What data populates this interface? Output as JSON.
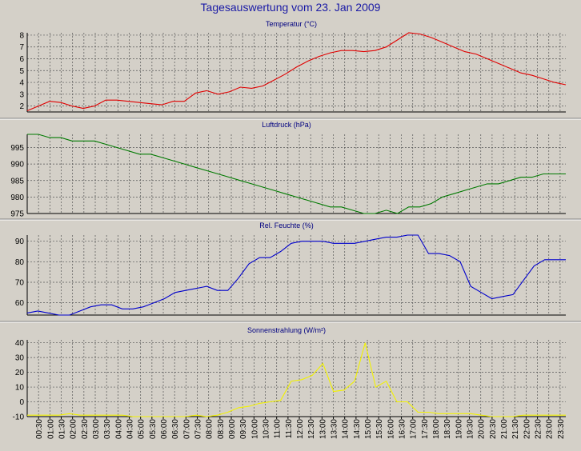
{
  "page": {
    "title": "Tagesauswertung vom 23. Jan 2009"
  },
  "chart_data": [
    {
      "type": "line",
      "title": "Temperatur (°C)",
      "color": "#e00000",
      "ylim": [
        1.5,
        8.2
      ],
      "yticks": [
        2,
        3,
        4,
        5,
        6,
        7,
        8
      ],
      "grid": true,
      "values": [
        1.6,
        2.0,
        2.4,
        2.3,
        2.0,
        1.8,
        2.0,
        2.5,
        2.5,
        2.4,
        2.3,
        2.2,
        2.1,
        2.4,
        2.4,
        3.1,
        3.3,
        3.0,
        3.2,
        3.6,
        3.5,
        3.7,
        4.2,
        4.7,
        5.3,
        5.8,
        6.2,
        6.5,
        6.7,
        6.7,
        6.6,
        6.7,
        7.0,
        7.6,
        8.2,
        8.1,
        7.8,
        7.4,
        7.0,
        6.6,
        6.4,
        6.0,
        5.6,
        5.2,
        4.8,
        4.6,
        4.3,
        4.0,
        3.8
      ]
    },
    {
      "type": "line",
      "title": "Luftdruck (hPa)",
      "color": "#007a00",
      "ylim": [
        975,
        999
      ],
      "yticks": [
        975,
        980,
        985,
        990,
        995
      ],
      "grid": true,
      "values": [
        999,
        999,
        998,
        998,
        997,
        997,
        997,
        996,
        995,
        994,
        993,
        993,
        992,
        991,
        990,
        989,
        988,
        987,
        986,
        985,
        984,
        983,
        982,
        981,
        980,
        979,
        978,
        977,
        977,
        976,
        975,
        975,
        976,
        975,
        977,
        977,
        978,
        980,
        981,
        982,
        983,
        984,
        984,
        985,
        986,
        986,
        987,
        987,
        987
      ]
    },
    {
      "type": "line",
      "title": "Rel. Feuchte (%)",
      "color": "#0000cc",
      "ylim": [
        54,
        93
      ],
      "yticks": [
        60,
        70,
        80,
        90
      ],
      "grid": true,
      "values": [
        55,
        56,
        55,
        54,
        54,
        56,
        58,
        59,
        59,
        57,
        57,
        58,
        60,
        62,
        65,
        66,
        67,
        68,
        66,
        66,
        72,
        79,
        82,
        82,
        85,
        89,
        90,
        90,
        90,
        89,
        89,
        89,
        90,
        91,
        92,
        92,
        93,
        93,
        84,
        84,
        83,
        80,
        68,
        65,
        62,
        63,
        64,
        71,
        78,
        81,
        81,
        81
      ]
    },
    {
      "type": "line",
      "title": "Sonnenstrahlung (W/m²)",
      "color": "#f2f200",
      "ylim": [
        -10,
        42
      ],
      "yticks": [
        -10,
        0,
        10,
        20,
        30,
        40
      ],
      "grid": true,
      "values": [
        -9,
        -9,
        -9,
        -9,
        -8,
        -9,
        -9,
        -9,
        -9,
        -9,
        -10,
        -10,
        -10,
        -10,
        -10,
        -10,
        -9,
        -10,
        -9,
        -7,
        -4,
        -3,
        -1,
        0,
        1,
        14,
        15,
        18,
        26,
        7,
        8,
        14,
        40,
        10,
        14,
        0,
        0,
        -7,
        -7,
        -8,
        -8,
        -8,
        -8,
        -9,
        -10,
        -10,
        -10,
        -9,
        -9,
        -9,
        -9,
        -9
      ]
    }
  ],
  "x_ticks": [
    "00:30",
    "01:00",
    "01:30",
    "02:00",
    "02:30",
    "03:00",
    "03:30",
    "04:00",
    "04:30",
    "05:00",
    "05:30",
    "06:00",
    "06:30",
    "07:00",
    "07:30",
    "08:00",
    "08:30",
    "09:00",
    "09:30",
    "10:00",
    "10:30",
    "11:00",
    "11:30",
    "12:00",
    "12:30",
    "13:00",
    "13:30",
    "14:00",
    "14:30",
    "15:00",
    "15:30",
    "16:00",
    "16:30",
    "17:00",
    "17:30",
    "18:00",
    "18:30",
    "19:00",
    "19:30",
    "20:00",
    "20:30",
    "21:00",
    "21:30",
    "22:00",
    "22:30",
    "23:00",
    "23:30"
  ]
}
